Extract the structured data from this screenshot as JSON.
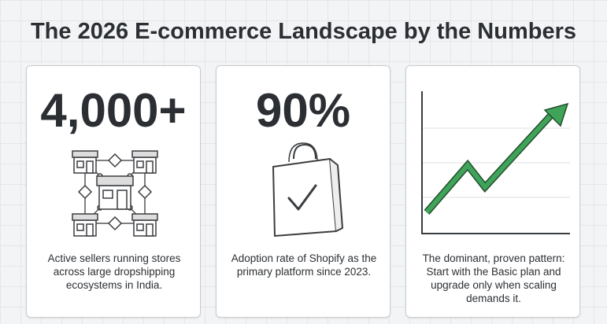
{
  "title": "The 2026 E-commerce Landscape by the Numbers",
  "cards": [
    {
      "stat": "4,000+",
      "text": "Active sellers running stores across large dropshipping ecosystems in India."
    },
    {
      "stat": "90%",
      "text": "Adoption rate of Shopify as the primary platform since 2023."
    },
    {
      "text": "The dominant, proven pattern: Start with the Basic plan and upgrade only when scaling demands it."
    }
  ]
}
